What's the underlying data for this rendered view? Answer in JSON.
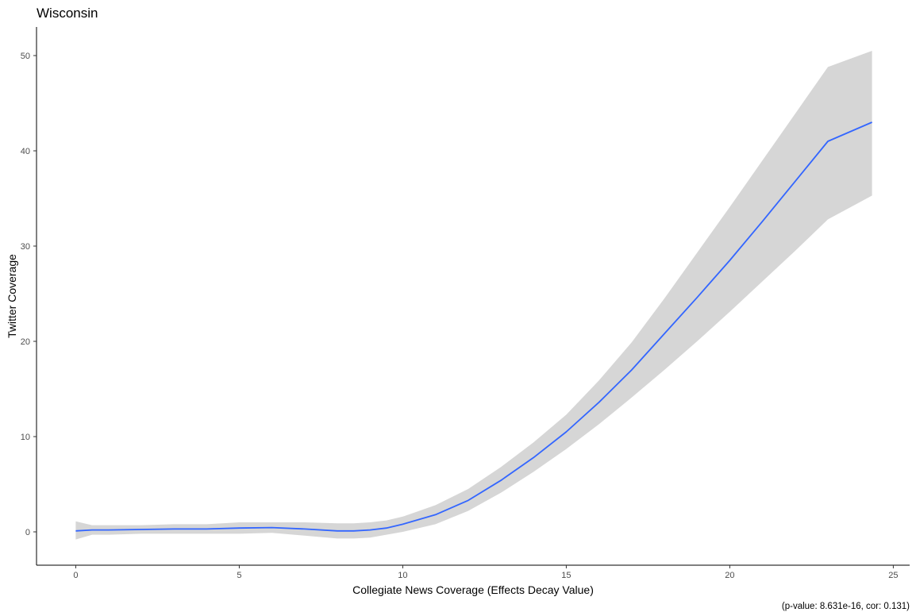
{
  "chart_data": {
    "type": "line",
    "title": "Wisconsin",
    "xlabel": "Collegiate News Coverage (Effects Decay Value)",
    "ylabel": "Twitter Coverage",
    "caption": "(p-value: 8.631e-16, cor: 0.131)",
    "xlim": [
      -1.2,
      25.5
    ],
    "ylim": [
      -3.5,
      53
    ],
    "x_ticks": [
      0,
      5,
      10,
      15,
      20,
      25
    ],
    "y_ticks": [
      0,
      10,
      20,
      30,
      40,
      50
    ],
    "grid": false,
    "colors": {
      "line": "#3366FF",
      "ribbon": "#d6d6d6",
      "axis": "#000000",
      "tick_text": "#4d4d4d"
    },
    "series": [
      {
        "x": [
          0,
          0.5,
          1,
          2,
          3,
          4,
          5,
          6,
          7,
          8,
          8.5,
          9,
          9.5,
          10,
          11,
          12,
          13,
          14,
          15,
          16,
          17,
          18,
          19,
          20,
          21,
          22,
          23,
          24.35
        ],
        "y": [
          0.1,
          0.2,
          0.2,
          0.25,
          0.3,
          0.3,
          0.4,
          0.45,
          0.3,
          0.1,
          0.1,
          0.2,
          0.4,
          0.8,
          1.8,
          3.3,
          5.4,
          7.8,
          10.5,
          13.6,
          17.0,
          20.8,
          24.6,
          28.5,
          32.6,
          36.8,
          41.0,
          43.0
        ],
        "lower": [
          -0.8,
          -0.3,
          -0.3,
          -0.2,
          -0.2,
          -0.2,
          -0.2,
          -0.1,
          -0.4,
          -0.7,
          -0.7,
          -0.6,
          -0.3,
          0.0,
          0.8,
          2.2,
          4.1,
          6.3,
          8.7,
          11.3,
          14.1,
          17.0,
          20.0,
          23.1,
          26.3,
          29.5,
          32.8,
          35.3
        ],
        "upper": [
          1.1,
          0.7,
          0.7,
          0.7,
          0.8,
          0.8,
          1.0,
          1.0,
          1.0,
          0.9,
          0.9,
          1.0,
          1.2,
          1.6,
          2.8,
          4.5,
          6.8,
          9.4,
          12.3,
          15.9,
          19.9,
          24.5,
          29.3,
          34.1,
          39.0,
          43.9,
          48.8,
          50.5
        ]
      }
    ]
  }
}
